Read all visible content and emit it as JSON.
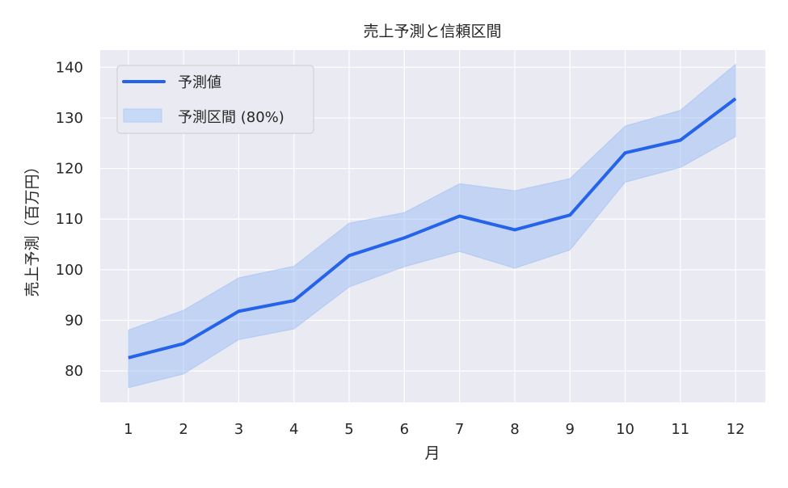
{
  "chart_data": {
    "type": "line",
    "title": "売上予測と信頼区間",
    "xlabel": "月",
    "ylabel": "売上予測（百万円）",
    "x": [
      1,
      2,
      3,
      4,
      5,
      6,
      7,
      8,
      9,
      10,
      11,
      12
    ],
    "xticks": [
      "1",
      "2",
      "3",
      "4",
      "5",
      "6",
      "7",
      "8",
      "9",
      "10",
      "11",
      "12"
    ],
    "yticks": [
      80,
      90,
      100,
      110,
      120,
      130,
      140
    ],
    "xlim": [
      0.49,
      12.54
    ],
    "ylim": [
      73.8,
      143.4
    ],
    "grid": true,
    "legend_position": "top-left",
    "series": [
      {
        "name": "予測値",
        "kind": "line",
        "color": "#2563eb",
        "values": [
          82.6,
          85.4,
          91.8,
          93.9,
          102.8,
          106.3,
          110.6,
          107.9,
          110.8,
          123.1,
          125.6,
          133.8
        ]
      }
    ],
    "band": {
      "name": "予測区間 (80%)",
      "color": "#93b9f5",
      "lower": [
        76.7,
        79.4,
        86.2,
        88.3,
        96.6,
        100.6,
        103.6,
        100.3,
        103.9,
        117.3,
        120.2,
        126.3
      ],
      "upper": [
        88.1,
        92.0,
        98.4,
        100.7,
        109.2,
        111.3,
        117.0,
        115.6,
        118.0,
        128.4,
        131.5,
        140.6
      ]
    },
    "background_color": "#eaeaf2"
  }
}
